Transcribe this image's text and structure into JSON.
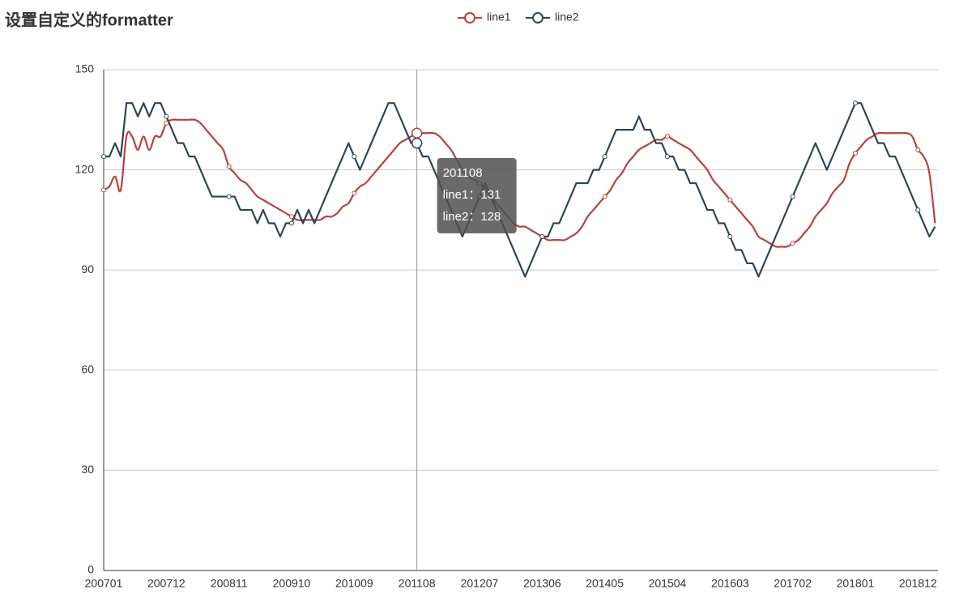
{
  "chart_data": {
    "type": "line",
    "title": "设置自定义的formatter",
    "categories": [
      "200701",
      null,
      null,
      null,
      null,
      null,
      null,
      null,
      null,
      null,
      null,
      "200712",
      null,
      null,
      null,
      null,
      null,
      null,
      null,
      null,
      null,
      null,
      "200811",
      null,
      null,
      null,
      null,
      null,
      null,
      null,
      null,
      null,
      null,
      "200910",
      null,
      null,
      null,
      null,
      null,
      null,
      null,
      null,
      null,
      null,
      "201009",
      null,
      null,
      null,
      null,
      null,
      null,
      null,
      null,
      null,
      null,
      "201108",
      null,
      null,
      null,
      null,
      null,
      null,
      null,
      null,
      null,
      null,
      "201207",
      null,
      null,
      null,
      null,
      null,
      null,
      null,
      null,
      null,
      null,
      "201306",
      null,
      null,
      null,
      null,
      null,
      null,
      null,
      null,
      null,
      null,
      "201405",
      null,
      null,
      null,
      null,
      null,
      null,
      null,
      null,
      null,
      null,
      "201504",
      null,
      null,
      null,
      null,
      null,
      null,
      null,
      null,
      null,
      null,
      "201603",
      null,
      null,
      null,
      null,
      null,
      null,
      null,
      null,
      null,
      null,
      "201702",
      null,
      null,
      null,
      null,
      null,
      null,
      null,
      null,
      null,
      null,
      "201801",
      null,
      null,
      null,
      null,
      null,
      null,
      null,
      null,
      null,
      null,
      "201812",
      null,
      null,
      null
    ],
    "series": [
      {
        "name": "line1",
        "color": "#b5433d",
        "smooth": true,
        "values": [
          114,
          115,
          118,
          114,
          130,
          130,
          126,
          130,
          126,
          130,
          130,
          134,
          135,
          135,
          135,
          135,
          135,
          134,
          132,
          130,
          128,
          126,
          121,
          119,
          117,
          116,
          114,
          112,
          111,
          110,
          109,
          108,
          107,
          106,
          105,
          105,
          105,
          105,
          105,
          106,
          106,
          107,
          109,
          110,
          113,
          115,
          116,
          118,
          120,
          122,
          124,
          126,
          128,
          129,
          130,
          131,
          131,
          131,
          131,
          130,
          128,
          126,
          123,
          120,
          118,
          117,
          116,
          114,
          112,
          110,
          108,
          106,
          104,
          103,
          103,
          102,
          101,
          100,
          99,
          99,
          99,
          99,
          100,
          101,
          103,
          106,
          108,
          110,
          112,
          114,
          117,
          119,
          122,
          124,
          126,
          127,
          128,
          129,
          129,
          130,
          129,
          128,
          127,
          126,
          124,
          122,
          120,
          117,
          115,
          113,
          111,
          109,
          107,
          105,
          103,
          100,
          99,
          98,
          97,
          97,
          97,
          98,
          99,
          101,
          103,
          106,
          108,
          110,
          113,
          115,
          117,
          122,
          125,
          127,
          129,
          130,
          131,
          131,
          131,
          131,
          131,
          131,
          130,
          126,
          124,
          119,
          104
        ]
      },
      {
        "name": "line2",
        "color": "#2f4554",
        "smooth": false,
        "values": [
          124,
          124,
          128,
          124,
          140,
          140,
          136,
          140,
          136,
          140,
          140,
          136,
          132,
          128,
          128,
          124,
          124,
          120,
          116,
          112,
          112,
          112,
          112,
          112,
          108,
          108,
          108,
          104,
          108,
          104,
          104,
          100,
          104,
          104,
          108,
          104,
          108,
          104,
          108,
          112,
          116,
          120,
          124,
          128,
          124,
          120,
          124,
          128,
          132,
          136,
          140,
          140,
          136,
          132,
          128,
          128,
          124,
          124,
          120,
          116,
          112,
          108,
          104,
          100,
          104,
          108,
          112,
          116,
          112,
          108,
          104,
          100,
          96,
          92,
          88,
          92,
          96,
          100,
          100,
          104,
          104,
          108,
          112,
          116,
          116,
          116,
          120,
          120,
          124,
          128,
          132,
          132,
          132,
          132,
          136,
          132,
          132,
          128,
          128,
          124,
          124,
          120,
          120,
          116,
          116,
          112,
          108,
          108,
          104,
          104,
          100,
          96,
          96,
          92,
          92,
          88,
          92,
          96,
          100,
          104,
          108,
          112,
          116,
          120,
          124,
          128,
          124,
          120,
          124,
          128,
          132,
          136,
          140,
          140,
          136,
          132,
          128,
          128,
          124,
          124,
          120,
          116,
          112,
          108,
          104,
          100,
          103
        ]
      }
    ],
    "ylim": [
      0,
      150
    ],
    "yticks": [
      0,
      30,
      60,
      90,
      120,
      150
    ],
    "grid": true,
    "legend": "top",
    "tooltip": [
      "201108",
      "line1：131",
      "line2：128"
    ]
  }
}
